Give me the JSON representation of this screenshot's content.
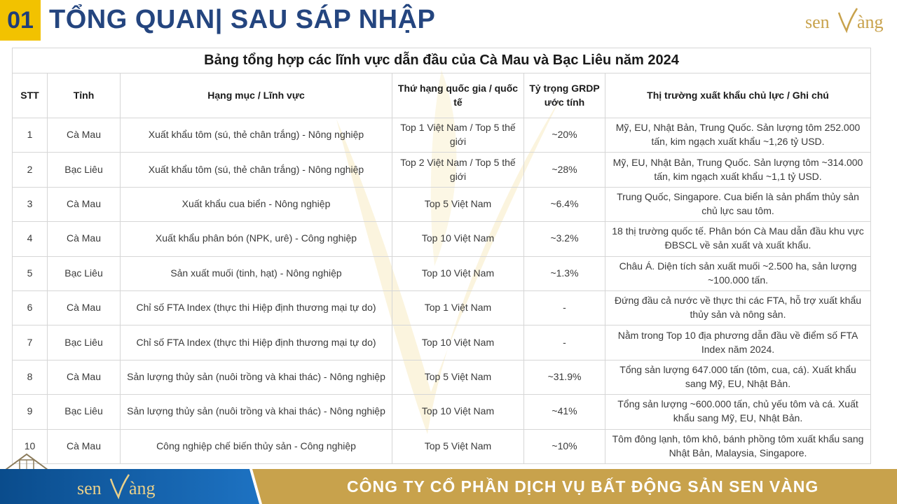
{
  "header": {
    "section_number": "01",
    "title": "TỔNG QUAN| SAU SÁP NHẬP",
    "logo_text": "sen vàng"
  },
  "table": {
    "caption": "Bảng tổng hợp các lĩnh vực dẫn đầu của Cà Mau và Bạc Liêu năm 2024",
    "columns": [
      "STT",
      "Tỉnh",
      "Hạng mục / Lĩnh vực",
      "Thứ hạng quốc gia / quốc tế",
      "Tỷ trọng GRDP ước tính",
      "Thị trường xuất khẩu chủ lực / Ghi chú"
    ],
    "rows": [
      [
        "1",
        "Cà Mau",
        "Xuất khẩu tôm (sú, thẻ chân trắng) - Nông nghiệp",
        "Top 1 Việt Nam / Top 5 thế giới",
        "~20%",
        "Mỹ, EU, Nhật Bản, Trung Quốc. Sản lượng tôm 252.000 tấn, kim ngạch xuất khẩu ~1,26 tỷ USD."
      ],
      [
        "2",
        "Bạc Liêu",
        "Xuất khẩu tôm (sú, thẻ chân trắng) - Nông nghiệp",
        "Top 2 Việt Nam / Top 5 thế giới",
        "~28%",
        "Mỹ, EU, Nhật Bản, Trung Quốc. Sản lượng tôm ~314.000 tấn, kim ngạch xuất khẩu ~1,1 tỷ USD."
      ],
      [
        "3",
        "Cà Mau",
        "Xuất khẩu cua biển - Nông nghiệp",
        "Top 5 Việt Nam",
        "~6.4%",
        "Trung Quốc, Singapore. Cua biển là sản phẩm thủy sản chủ lực sau tôm."
      ],
      [
        "4",
        "Cà Mau",
        "Xuất khẩu phân bón (NPK, urê) - Công nghiệp",
        "Top 10 Việt Nam",
        "~3.2%",
        "18 thị trường quốc tế. Phân bón Cà Mau dẫn đầu khu vực ĐBSCL về sản xuất và xuất khẩu."
      ],
      [
        "5",
        "Bạc Liêu",
        "Sản xuất muối (tinh, hạt) - Nông nghiệp",
        "Top 10 Việt Nam",
        "~1.3%",
        "Châu Á. Diện tích sản xuất muối ~2.500 ha, sản lượng ~100.000 tấn."
      ],
      [
        "6",
        "Cà Mau",
        "Chỉ số FTA Index (thực thi Hiệp định thương mại tự do)",
        "Top 1 Việt Nam",
        "-",
        "Đứng đầu cả nước về thực thi các FTA, hỗ trợ xuất khẩu thủy sản và nông sản."
      ],
      [
        "7",
        "Bạc Liêu",
        "Chỉ số FTA Index (thực thi Hiệp định thương mại tự do)",
        "Top 10 Việt Nam",
        "-",
        "Nằm trong Top 10 địa phương dẫn đầu về điểm số FTA Index năm 2024."
      ],
      [
        "8",
        "Cà Mau",
        "Sản lượng thủy sản (nuôi trồng và khai thác) - Nông nghiệp",
        "Top 5 Việt Nam",
        "~31.9%",
        "Tổng sản lượng 647.000 tấn (tôm, cua, cá). Xuất khẩu sang Mỹ, EU, Nhật Bản."
      ],
      [
        "9",
        "Bạc Liêu",
        "Sản lượng thủy sản (nuôi trồng và khai thác) - Nông nghiệp",
        "Top 10 Việt Nam",
        "~41%",
        "Tổng sản lượng ~600.000 tấn, chủ yếu tôm và cá. Xuất khẩu sang Mỹ, EU, Nhật Bản."
      ],
      [
        "10",
        "Cà Mau",
        "Công nghiệp chế biến thủy sản - Công nghiệp",
        "Top 5 Việt Nam",
        "~10%",
        "Tôm đông lạnh, tôm khô, bánh phồng tôm xuất khẩu sang Nhật Bản, Malaysia, Singapore."
      ]
    ]
  },
  "footer": {
    "logo_text": "sen vàng",
    "company": "CÔNG TY CỔ PHẦN DỊCH VỤ BẤT ĐỘNG SẢN SEN VÀNG"
  },
  "colors": {
    "title_blue": "#24457f",
    "accent_yellow": "#f2c200",
    "footer_gold": "#c8a24c",
    "footer_blue": "#0a4c8c"
  },
  "icons": {
    "watermark": "lotus-v-watermark-icon",
    "house": "house-icon"
  }
}
